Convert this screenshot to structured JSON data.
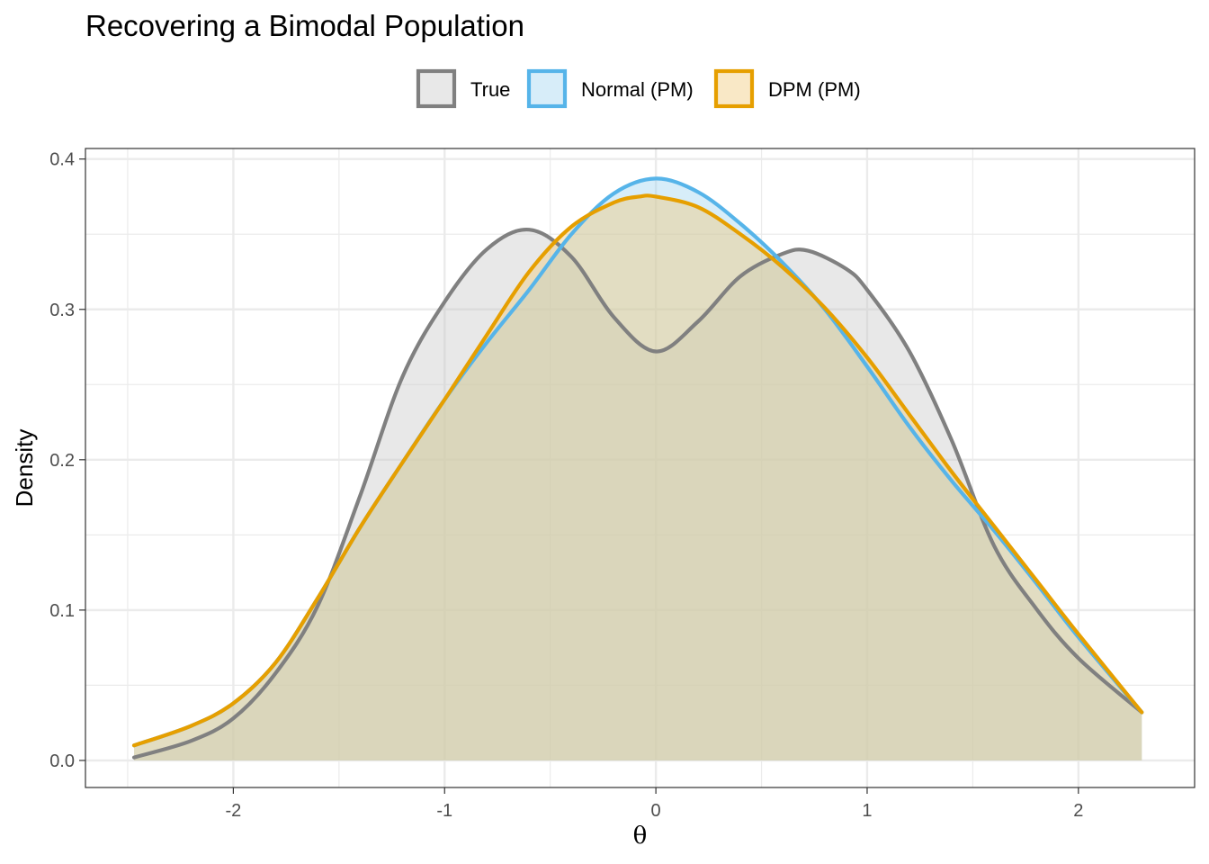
{
  "chart_data": {
    "type": "area",
    "title": "Recovering a Bimodal Population",
    "xlabel": "θ",
    "ylabel": "Density",
    "xlim": [
      -2.7,
      2.55
    ],
    "ylim": [
      -0.018,
      0.407
    ],
    "x_ticks": [
      -2,
      -1,
      0,
      1,
      2
    ],
    "x_tick_labels": [
      "-2",
      "-1",
      "0",
      "1",
      "2"
    ],
    "y_ticks": [
      0.0,
      0.1,
      0.2,
      0.3,
      0.4
    ],
    "y_tick_labels": [
      "0.0",
      "0.1",
      "0.2",
      "0.3",
      "0.4"
    ],
    "grid": true,
    "legend_position": "top",
    "series": [
      {
        "name": "True",
        "line_color": "#808080",
        "fill_color": "#c8c8c8",
        "x": [
          -2.47,
          -2.2,
          -2.0,
          -1.8,
          -1.6,
          -1.4,
          -1.2,
          -1.0,
          -0.8,
          -0.6,
          -0.4,
          -0.2,
          0.0,
          0.2,
          0.4,
          0.6,
          0.72,
          0.9,
          1.0,
          1.2,
          1.4,
          1.6,
          1.8,
          2.0,
          2.3
        ],
        "y": [
          0.002,
          0.013,
          0.028,
          0.058,
          0.103,
          0.176,
          0.255,
          0.305,
          0.34,
          0.353,
          0.335,
          0.295,
          0.272,
          0.292,
          0.322,
          0.337,
          0.339,
          0.327,
          0.313,
          0.272,
          0.213,
          0.143,
          0.101,
          0.068,
          0.032
        ]
      },
      {
        "name": "Normal (PM)",
        "line_color": "#56b4e9",
        "fill_color": "#9fd4f1",
        "x": [
          -2.47,
          -2.2,
          -2.0,
          -1.8,
          -1.6,
          -1.4,
          -1.2,
          -1.0,
          -0.8,
          -0.6,
          -0.4,
          -0.2,
          0.0,
          0.2,
          0.4,
          0.6,
          0.8,
          1.0,
          1.2,
          1.4,
          1.6,
          1.8,
          2.0,
          2.3
        ],
        "y": [
          0.01,
          0.023,
          0.038,
          0.065,
          0.108,
          0.155,
          0.198,
          0.24,
          0.278,
          0.313,
          0.35,
          0.377,
          0.387,
          0.378,
          0.357,
          0.331,
          0.3,
          0.262,
          0.222,
          0.186,
          0.153,
          0.118,
          0.082,
          0.032
        ]
      },
      {
        "name": "DPM (PM)",
        "line_color": "#e69f00",
        "fill_color": "#f0c978",
        "x": [
          -2.47,
          -2.2,
          -2.0,
          -1.8,
          -1.6,
          -1.4,
          -1.2,
          -1.0,
          -0.8,
          -0.6,
          -0.4,
          -0.2,
          -0.08,
          0.0,
          0.2,
          0.4,
          0.6,
          0.8,
          1.0,
          1.2,
          1.4,
          1.6,
          1.8,
          2.0,
          2.3
        ],
        "y": [
          0.01,
          0.023,
          0.038,
          0.065,
          0.108,
          0.155,
          0.198,
          0.24,
          0.283,
          0.325,
          0.355,
          0.371,
          0.375,
          0.375,
          0.368,
          0.35,
          0.328,
          0.301,
          0.268,
          0.23,
          0.192,
          0.156,
          0.12,
          0.084,
          0.032
        ]
      }
    ]
  }
}
